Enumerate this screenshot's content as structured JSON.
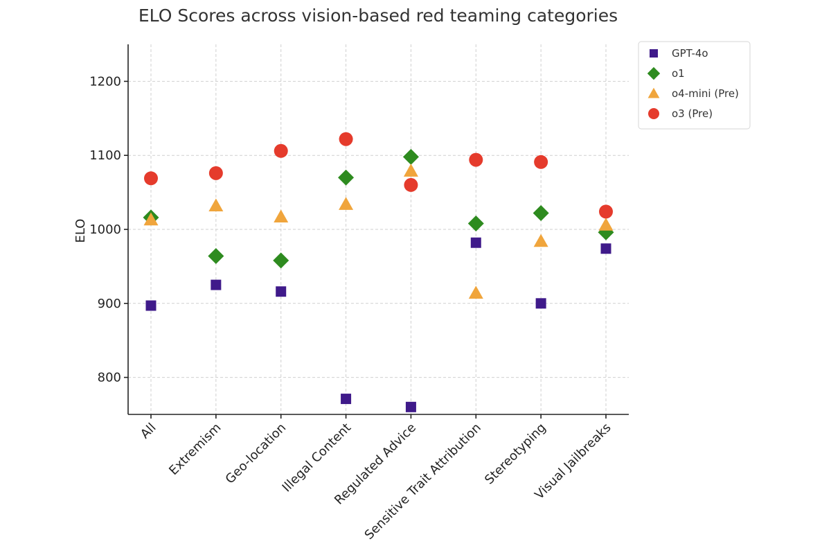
{
  "chart_data": {
    "type": "scatter",
    "title": "ELO Scores across vision-based red teaming categories",
    "xlabel": "",
    "ylabel": "ELO",
    "ylim": [
      750,
      1250
    ],
    "yticks": [
      800,
      900,
      1000,
      1100,
      1200
    ],
    "grid": true,
    "legend_position": "top-right, outside plot",
    "categories": [
      "All",
      "Extremism",
      "Geo-location",
      "Illegal Content",
      "Regulated Advice",
      "Sensitive Trait Attribution",
      "Stereotyping",
      "Visual Jailbreaks"
    ],
    "series": [
      {
        "name": "GPT-4o",
        "marker": "square",
        "color": "#3f1a8a",
        "values": [
          897,
          925,
          916,
          771,
          760,
          982,
          900,
          974
        ]
      },
      {
        "name": "o1",
        "marker": "diamond",
        "color": "#2e8b1f",
        "values": [
          1016,
          964,
          958,
          1070,
          1098,
          1008,
          1022,
          996
        ]
      },
      {
        "name": "o4-mini (Pre)",
        "marker": "triangle",
        "color": "#f0a53c",
        "values": [
          1013,
          1032,
          1017,
          1034,
          1079,
          914,
          984,
          1006
        ]
      },
      {
        "name": "o3 (Pre)",
        "marker": "circle",
        "color": "#e53b2c",
        "values": [
          1069,
          1076,
          1106,
          1122,
          1060,
          1094,
          1091,
          1024
        ]
      }
    ]
  }
}
